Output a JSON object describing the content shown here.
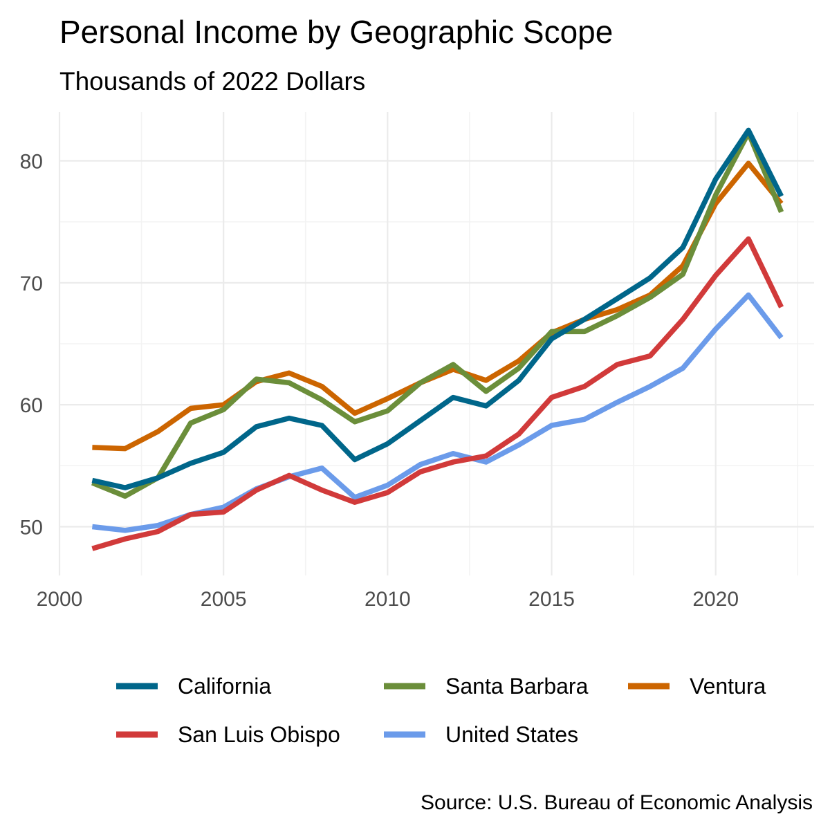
{
  "chart_data": {
    "type": "line",
    "title": "Personal Income by Geographic Scope",
    "subtitle": "Thousands of 2022 Dollars",
    "caption": "Source: U.S. Bureau of Economic Analysis",
    "xlim": [
      2000,
      2023
    ],
    "ylim": [
      46,
      84
    ],
    "x_ticks": [
      2000,
      2005,
      2010,
      2015,
      2020
    ],
    "y_ticks": [
      50,
      60,
      70,
      80
    ],
    "grid": true,
    "legend_position": "bottom",
    "x": [
      2001,
      2002,
      2003,
      2004,
      2005,
      2006,
      2007,
      2008,
      2009,
      2010,
      2011,
      2012,
      2013,
      2014,
      2015,
      2016,
      2017,
      2018,
      2019,
      2020,
      2021,
      2022
    ],
    "series": [
      {
        "name": "California",
        "color": "#00668a",
        "values": [
          53.8,
          53.2,
          54.0,
          55.2,
          56.1,
          58.2,
          58.9,
          58.3,
          55.5,
          56.8,
          58.7,
          60.6,
          59.9,
          62.0,
          65.4,
          67.0,
          68.7,
          70.4,
          72.9,
          78.5,
          82.5,
          77.1
        ]
      },
      {
        "name": "Santa Barbara",
        "color": "#6b8e3a",
        "values": [
          53.6,
          52.5,
          54.0,
          58.5,
          59.6,
          62.1,
          61.8,
          60.4,
          58.6,
          59.5,
          61.8,
          63.3,
          61.1,
          63.0,
          66.0,
          66.0,
          67.3,
          68.8,
          70.7,
          77.2,
          82.3,
          75.8
        ]
      },
      {
        "name": "Ventura",
        "color": "#cc6500",
        "values": [
          56.5,
          56.4,
          57.8,
          59.7,
          60.0,
          61.9,
          62.6,
          61.5,
          59.3,
          60.5,
          61.8,
          62.9,
          62.0,
          63.6,
          65.9,
          67.0,
          67.8,
          69.0,
          71.4,
          76.5,
          79.8,
          76.5
        ]
      },
      {
        "name": "San Luis Obispo",
        "color": "#d13a3a",
        "values": [
          48.2,
          49.0,
          49.6,
          51.0,
          51.2,
          53.0,
          54.2,
          53.0,
          52.0,
          52.8,
          54.5,
          55.3,
          55.8,
          57.6,
          60.6,
          61.5,
          63.3,
          64.0,
          67.0,
          70.6,
          73.6,
          68.0
        ]
      },
      {
        "name": "United States",
        "color": "#6b9bea",
        "values": [
          50.0,
          49.7,
          50.1,
          51.0,
          51.6,
          53.1,
          54.1,
          54.8,
          52.4,
          53.4,
          55.1,
          56.0,
          55.3,
          56.7,
          58.3,
          58.8,
          60.2,
          61.5,
          63.0,
          66.2,
          69.0,
          65.5
        ]
      }
    ]
  }
}
